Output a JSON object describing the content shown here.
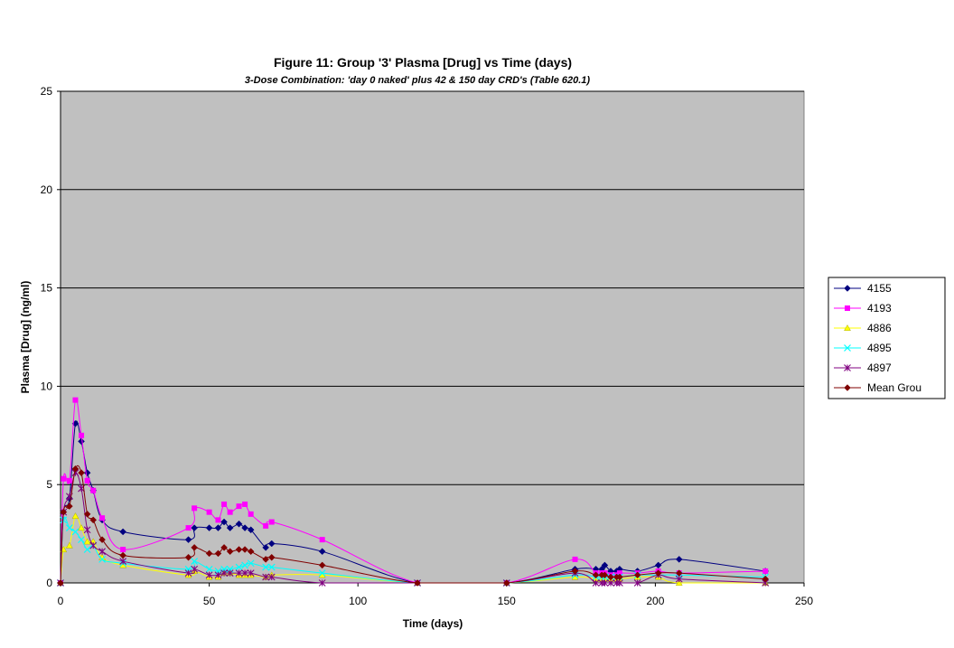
{
  "chart_data": {
    "type": "line",
    "title": "Figure 11: Group '3' Plasma [Drug] vs Time (days)",
    "subtitle": "3-Dose Combination: 'day 0 naked' plus 42 & 150 day CRD's (Table 620.1)",
    "xlabel": "Time (days)",
    "ylabel": "Plasma [Drug] (ng/ml)",
    "xlim": [
      0,
      250
    ],
    "ylim": [
      0,
      25
    ],
    "xticks": [
      "0",
      "50",
      "100",
      "150",
      "200",
      "250"
    ],
    "yticks": [
      "0",
      "5",
      "10",
      "15",
      "20",
      "25"
    ],
    "grid": "horizontal",
    "plot_background": "#c0c0c0",
    "legend_position": "right",
    "series": [
      {
        "name": "4155",
        "color": "#000080",
        "marker": "diamond",
        "points": [
          [
            0,
            0
          ],
          [
            1,
            3.6
          ],
          [
            3,
            4.3
          ],
          [
            5,
            8.1
          ],
          [
            7,
            7.2
          ],
          [
            9,
            5.6
          ],
          [
            11,
            4.7
          ],
          [
            14,
            3.2
          ],
          [
            21,
            2.6
          ],
          [
            43,
            2.2
          ],
          [
            45,
            2.8
          ],
          [
            50,
            2.8
          ],
          [
            53,
            2.8
          ],
          [
            55,
            3.1
          ],
          [
            57,
            2.8
          ],
          [
            60,
            3.0
          ],
          [
            62,
            2.8
          ],
          [
            64,
            2.7
          ],
          [
            69,
            1.8
          ],
          [
            71,
            2.0
          ],
          [
            88,
            1.6
          ],
          [
            120,
            0
          ],
          [
            150,
            0
          ],
          [
            173,
            0.7
          ],
          [
            180,
            0.7
          ],
          [
            182,
            0.7
          ],
          [
            183,
            0.9
          ],
          [
            185,
            0.6
          ],
          [
            187,
            0.6
          ],
          [
            188,
            0.7
          ],
          [
            194,
            0.6
          ],
          [
            201,
            0.9
          ],
          [
            208,
            1.2
          ],
          [
            237,
            0.6
          ]
        ]
      },
      {
        "name": "4193",
        "color": "#ff00ff",
        "marker": "square",
        "points": [
          [
            0,
            0
          ],
          [
            1,
            5.3
          ],
          [
            3,
            5.2
          ],
          [
            5,
            9.3
          ],
          [
            7,
            7.5
          ],
          [
            9,
            5.2
          ],
          [
            11,
            4.7
          ],
          [
            14,
            3.3
          ],
          [
            21,
            1.7
          ],
          [
            43,
            2.8
          ],
          [
            45,
            3.8
          ],
          [
            50,
            3.6
          ],
          [
            53,
            3.2
          ],
          [
            55,
            4.0
          ],
          [
            57,
            3.6
          ],
          [
            60,
            3.9
          ],
          [
            62,
            4.0
          ],
          [
            64,
            3.5
          ],
          [
            69,
            2.9
          ],
          [
            71,
            3.1
          ],
          [
            88,
            2.2
          ],
          [
            120,
            0
          ],
          [
            150,
            0
          ],
          [
            173,
            1.2
          ],
          [
            180,
            0.5
          ],
          [
            182,
            0.5
          ],
          [
            183,
            0.5
          ],
          [
            185,
            0.4
          ],
          [
            187,
            0.4
          ],
          [
            188,
            0.5
          ],
          [
            194,
            0.5
          ],
          [
            201,
            0.6
          ],
          [
            208,
            0.5
          ],
          [
            237,
            0.6
          ]
        ]
      },
      {
        "name": "4886",
        "color": "#ffff00",
        "marker": "triangle",
        "points": [
          [
            0,
            0
          ],
          [
            1,
            1.7
          ],
          [
            3,
            1.9
          ],
          [
            5,
            3.4
          ],
          [
            7,
            2.8
          ],
          [
            9,
            2.1
          ],
          [
            11,
            2.1
          ],
          [
            14,
            1.3
          ],
          [
            21,
            0.9
          ],
          [
            43,
            0.4
          ],
          [
            45,
            0.6
          ],
          [
            50,
            0.3
          ],
          [
            53,
            0.3
          ],
          [
            55,
            0.5
          ],
          [
            57,
            0.5
          ],
          [
            60,
            0.4
          ],
          [
            62,
            0.4
          ],
          [
            64,
            0.4
          ],
          [
            69,
            0.3
          ],
          [
            71,
            0.4
          ],
          [
            88,
            0.4
          ],
          [
            120,
            0
          ],
          [
            150,
            0
          ],
          [
            173,
            0.3
          ],
          [
            180,
            0.2
          ],
          [
            182,
            0.2
          ],
          [
            183,
            0.2
          ],
          [
            185,
            0.2
          ],
          [
            187,
            0.2
          ],
          [
            188,
            0.2
          ],
          [
            194,
            0.3
          ],
          [
            201,
            0.3
          ],
          [
            208,
            0
          ],
          [
            237,
            0
          ]
        ]
      },
      {
        "name": "4895",
        "color": "#00ffff",
        "marker": "x",
        "points": [
          [
            0,
            0
          ],
          [
            1,
            3.2
          ],
          [
            3,
            2.8
          ],
          [
            5,
            2.6
          ],
          [
            7,
            2.2
          ],
          [
            9,
            1.7
          ],
          [
            11,
            1.9
          ],
          [
            14,
            1.2
          ],
          [
            21,
            1.0
          ],
          [
            43,
            0.7
          ],
          [
            45,
            1.1
          ],
          [
            50,
            0.7
          ],
          [
            53,
            0.6
          ],
          [
            55,
            0.7
          ],
          [
            57,
            0.7
          ],
          [
            60,
            0.8
          ],
          [
            62,
            0.9
          ],
          [
            64,
            1.0
          ],
          [
            69,
            0.8
          ],
          [
            71,
            0.8
          ],
          [
            88,
            0.5
          ],
          [
            120,
            0
          ],
          [
            150,
            0
          ],
          [
            173,
            0.4
          ],
          [
            180,
            0.3
          ],
          [
            182,
            0.3
          ],
          [
            183,
            0.3
          ],
          [
            185,
            0.3
          ],
          [
            187,
            0.3
          ],
          [
            188,
            0.3
          ],
          [
            194,
            0.4
          ],
          [
            201,
            0.4
          ],
          [
            208,
            0.4
          ],
          [
            237,
            0.3
          ]
        ]
      },
      {
        "name": "4897",
        "color": "#800080",
        "marker": "star",
        "points": [
          [
            0,
            0
          ],
          [
            1,
            3.6
          ],
          [
            3,
            4.4
          ],
          [
            5,
            5.6
          ],
          [
            7,
            4.8
          ],
          [
            9,
            2.7
          ],
          [
            11,
            1.9
          ],
          [
            14,
            1.6
          ],
          [
            21,
            1.1
          ],
          [
            43,
            0.5
          ],
          [
            45,
            0.7
          ],
          [
            50,
            0.4
          ],
          [
            53,
            0.4
          ],
          [
            55,
            0.5
          ],
          [
            57,
            0.5
          ],
          [
            60,
            0.5
          ],
          [
            62,
            0.5
          ],
          [
            64,
            0.5
          ],
          [
            69,
            0.3
          ],
          [
            71,
            0.3
          ],
          [
            88,
            0
          ],
          [
            120,
            0
          ],
          [
            150,
            0
          ],
          [
            173,
            0.5
          ],
          [
            180,
            0
          ],
          [
            182,
            0
          ],
          [
            183,
            0
          ],
          [
            185,
            0
          ],
          [
            187,
            0
          ],
          [
            188,
            0
          ],
          [
            194,
            0
          ],
          [
            201,
            0.4
          ],
          [
            208,
            0.2
          ],
          [
            237,
            0
          ]
        ]
      },
      {
        "name": "Mean Grou",
        "color": "#800000",
        "marker": "diamond",
        "points": [
          [
            0,
            0
          ],
          [
            1,
            3.6
          ],
          [
            3,
            3.9
          ],
          [
            5,
            5.8
          ],
          [
            7,
            5.6
          ],
          [
            9,
            3.5
          ],
          [
            11,
            3.2
          ],
          [
            14,
            2.2
          ],
          [
            21,
            1.4
          ],
          [
            43,
            1.3
          ],
          [
            45,
            1.8
          ],
          [
            50,
            1.5
          ],
          [
            53,
            1.5
          ],
          [
            55,
            1.8
          ],
          [
            57,
            1.6
          ],
          [
            60,
            1.7
          ],
          [
            62,
            1.7
          ],
          [
            64,
            1.6
          ],
          [
            69,
            1.2
          ],
          [
            71,
            1.3
          ],
          [
            88,
            0.9
          ],
          [
            120,
            0
          ],
          [
            150,
            0
          ],
          [
            173,
            0.6
          ],
          [
            180,
            0.4
          ],
          [
            182,
            0.4
          ],
          [
            183,
            0.4
          ],
          [
            185,
            0.3
          ],
          [
            187,
            0.3
          ],
          [
            188,
            0.3
          ],
          [
            194,
            0.4
          ],
          [
            201,
            0.5
          ],
          [
            208,
            0.5
          ],
          [
            237,
            0.2
          ]
        ]
      }
    ]
  }
}
